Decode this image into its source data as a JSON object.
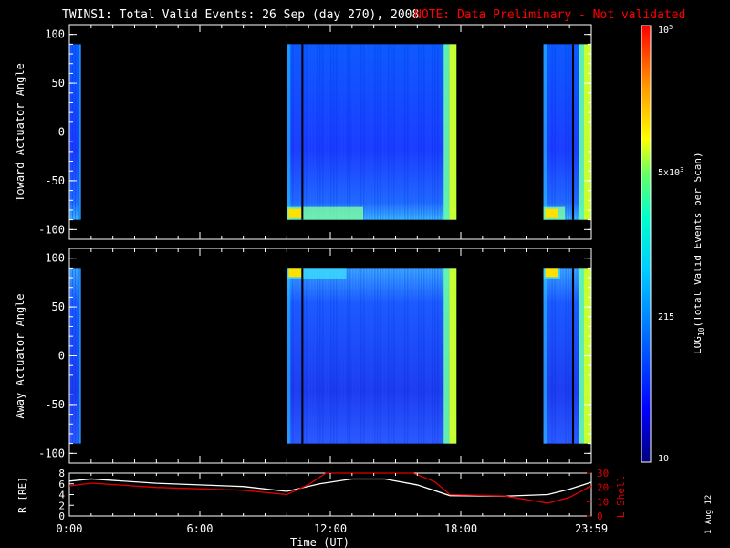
{
  "header": {
    "title": "TWINS1: Total Valid Events: 26 Sep (day 270), 2008",
    "note": "NOTE: Data Preliminary - Not validated"
  },
  "side_label": "1 Aug 12",
  "colors": {
    "background": "#000000",
    "axes": "#ffffff",
    "note": "#ff0000",
    "r_line": "#ffffff",
    "lshell_line": "#e00000"
  },
  "chart_data": [
    {
      "type": "heatmap",
      "panel": "toward",
      "ylabel": "Toward Actuator Angle",
      "ylim": [
        -110,
        110
      ],
      "yticks": [
        "100",
        "50",
        "0",
        "-50",
        "-100"
      ],
      "data_extent_y": [
        -90,
        90
      ],
      "x_range_hours": [
        0,
        24
      ],
      "data_blocks_hours": [
        {
          "start": 0.0,
          "end": 0.45,
          "level": "blue"
        },
        {
          "start": 0.45,
          "end": 0.52,
          "level": "light-blue"
        },
        {
          "start": 10.0,
          "end": 17.8,
          "level": "blue",
          "edges": "cyan-yellow"
        },
        {
          "start": 21.8,
          "end": 24.0,
          "level": "blue",
          "edges": "cyan-yellow"
        }
      ]
    },
    {
      "type": "heatmap",
      "panel": "away",
      "ylabel": "Away Actuator Angle",
      "ylim": [
        -110,
        110
      ],
      "yticks": [
        "100",
        "50",
        "0",
        "-50",
        "-100"
      ],
      "data_extent_y": [
        -90,
        90
      ],
      "x_range_hours": [
        0,
        24
      ],
      "data_blocks_hours": [
        {
          "start": 0.0,
          "end": 0.45,
          "level": "blue"
        },
        {
          "start": 0.45,
          "end": 0.52,
          "level": "light-blue"
        },
        {
          "start": 10.0,
          "end": 17.8,
          "level": "blue",
          "edges": "cyan-yellow"
        },
        {
          "start": 21.8,
          "end": 24.0,
          "level": "blue",
          "edges": "cyan-yellow"
        }
      ]
    },
    {
      "type": "line",
      "panel": "orbit",
      "ylabel": "R [RE]",
      "ylim": [
        0,
        8
      ],
      "yticks": [
        "8",
        "6",
        "4",
        "2",
        "0"
      ],
      "y2label": "L Shell",
      "y2lim": [
        0,
        30
      ],
      "y2ticks": [
        "30",
        "20",
        "10",
        "0"
      ],
      "xlabel": "Time (UT)",
      "xticks": [
        "0:00",
        "6:00",
        "12:00",
        "18:00",
        "23:59"
      ],
      "series": [
        {
          "name": "R [RE]",
          "x": [
            0,
            1,
            4,
            8,
            10,
            11.5,
            13,
            14.5,
            16,
            17.5,
            20,
            22,
            23,
            24
          ],
          "y": [
            6.5,
            6.9,
            6.1,
            5.5,
            4.6,
            6.0,
            6.9,
            6.9,
            5.8,
            3.8,
            3.7,
            4.0,
            5.0,
            6.3
          ]
        },
        {
          "name": "L Shell",
          "x": [
            0,
            1,
            4,
            8,
            10,
            11.0,
            11.8,
            15.8,
            16.8,
            17.5,
            20,
            22,
            23,
            24
          ],
          "y": [
            21,
            23,
            20,
            18,
            15,
            22,
            30,
            30,
            24,
            15,
            14,
            9,
            13,
            21
          ]
        }
      ]
    }
  ],
  "colorbar": {
    "label": "LOG10(Total Valid Events per Scan)",
    "ticks": [
      "10",
      "215",
      "5x10^3",
      "10^5"
    ],
    "colors": [
      "#00007a",
      "#0000ff",
      "#0066ff",
      "#00ccff",
      "#00ffcc",
      "#66ff66",
      "#ffff00",
      "#ff9900",
      "#ff0000"
    ]
  }
}
